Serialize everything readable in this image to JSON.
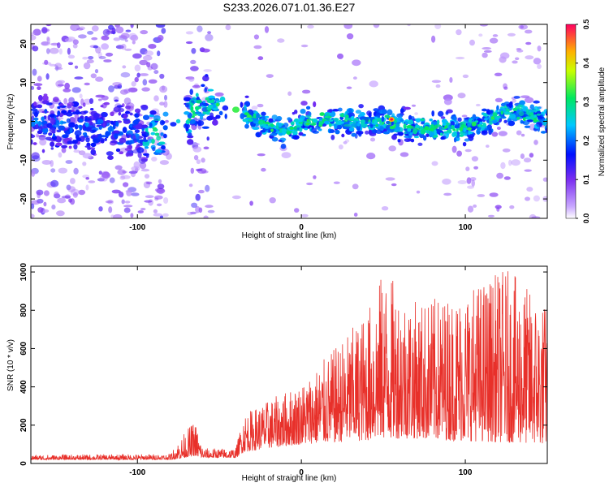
{
  "title": "S233.2026.071.01.36.E27",
  "chart_data": [
    {
      "type": "heatmap",
      "xlabel": "Height of straight line (km)",
      "ylabel": "Frequency (Hz)",
      "xlim": [
        -165,
        150
      ],
      "ylim": [
        -25,
        25
      ],
      "x_ticks": [
        -100,
        0,
        100
      ],
      "x_tick_labels": [
        "-100",
        "0",
        "100"
      ],
      "y_ticks": [
        -20,
        -10,
        0,
        10,
        20
      ],
      "y_tick_labels": [
        "-20",
        "-10",
        "0",
        "10",
        "20"
      ],
      "colorbar": {
        "label": "Normalized spectral amplitude",
        "range": [
          0.0,
          0.5
        ],
        "ticks": [
          0.0,
          0.1,
          0.2,
          0.3,
          0.4,
          0.5
        ],
        "tick_labels": [
          "0.0",
          "0.1",
          "0.2",
          "0.3",
          "0.4",
          "0.5"
        ]
      },
      "band_center_hz": [
        {
          "x": -165,
          "f": 0
        },
        {
          "x": -100,
          "f": -3
        },
        {
          "x": -80,
          "f": -2
        },
        {
          "x": -65,
          "f": 3
        },
        {
          "x": -50,
          "f": 5
        },
        {
          "x": -30,
          "f": 1
        },
        {
          "x": -10,
          "f": -3
        },
        {
          "x": 0,
          "f": 0
        },
        {
          "x": 30,
          "f": 0
        },
        {
          "x": 50,
          "f": 0
        },
        {
          "x": 70,
          "f": -2
        },
        {
          "x": 100,
          "f": -2
        },
        {
          "x": 130,
          "f": 3
        },
        {
          "x": 150,
          "f": 0
        }
      ],
      "peak": {
        "x": 55,
        "f": 0.5,
        "amplitude": 0.5
      },
      "gap_regions_km": [
        [
          -50,
          -35
        ],
        [
          -82,
          -70
        ]
      ]
    },
    {
      "type": "line",
      "xlabel": "Height of straight line (km)",
      "ylabel": "SNR (10 * v/v)",
      "xlim": [
        -165,
        150
      ],
      "ylim": [
        0,
        1030
      ],
      "x_ticks": [
        -100,
        0,
        100
      ],
      "x_tick_labels": [
        "-100",
        "0",
        "100"
      ],
      "y_ticks": [
        0,
        200,
        400,
        600,
        800,
        1000
      ],
      "y_tick_labels": [
        "0",
        "200",
        "400",
        "600",
        "800",
        "1000"
      ],
      "series": [
        {
          "name": "SNR",
          "color": "#e8302a",
          "envelope": [
            {
              "x": -165,
              "base": 20,
              "top": 45
            },
            {
              "x": -80,
              "base": 20,
              "top": 50
            },
            {
              "x": -75,
              "base": 25,
              "top": 120
            },
            {
              "x": -65,
              "base": 40,
              "top": 230
            },
            {
              "x": -60,
              "base": 30,
              "top": 80
            },
            {
              "x": -40,
              "base": 30,
              "top": 80
            },
            {
              "x": -35,
              "base": 60,
              "top": 260
            },
            {
              "x": -20,
              "base": 80,
              "top": 330
            },
            {
              "x": 0,
              "base": 100,
              "top": 420
            },
            {
              "x": 20,
              "base": 110,
              "top": 600
            },
            {
              "x": 40,
              "base": 120,
              "top": 800
            },
            {
              "x": 50,
              "base": 130,
              "top": 1010
            },
            {
              "x": 70,
              "base": 130,
              "top": 850
            },
            {
              "x": 90,
              "base": 120,
              "top": 880
            },
            {
              "x": 125,
              "base": 110,
              "top": 1020
            },
            {
              "x": 150,
              "base": 100,
              "top": 830
            }
          ]
        }
      ]
    }
  ]
}
